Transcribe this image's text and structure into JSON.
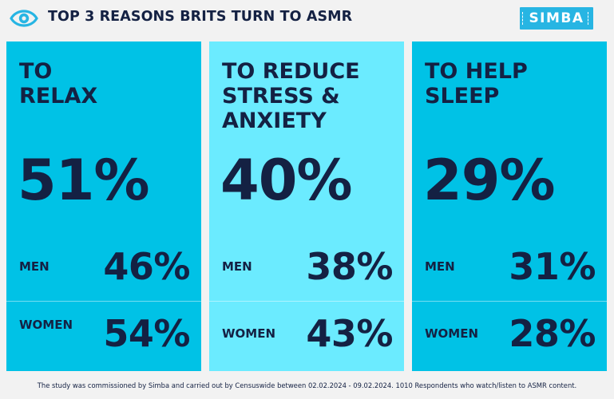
{
  "header": {
    "title": "TOP 3 REASONS BRITS TURN TO ASMR",
    "logo_text": "SIMBA",
    "icon": "eye-icon"
  },
  "colors": {
    "dark_text": "#142143",
    "card_cyan": "#00c2e6",
    "card_light": "#6bebff",
    "logo_blue": "#27b5e3"
  },
  "chart_data": {
    "type": "table",
    "title": "TOP 3 REASONS BRITS TURN TO ASMR",
    "columns": [
      "MEN",
      "WOMEN"
    ],
    "categories": [
      "TO RELAX",
      "TO REDUCE STRESS & ANXIETY",
      "TO HELP SLEEP"
    ],
    "cards": [
      {
        "title": "TO\nRELAX",
        "total": "51%",
        "men_label": "MEN",
        "men": "46%",
        "women_label": "WOMEN",
        "women": "54%"
      },
      {
        "title": "TO REDUCE\nSTRESS &\nANXIETY",
        "total": "40%",
        "men_label": "MEN",
        "men": "38%",
        "women_label": "WOMEN",
        "women": "43%"
      },
      {
        "title": "TO HELP\nSLEEP",
        "total": "29%",
        "men_label": "MEN",
        "men": "31%",
        "women_label": "WOMEN",
        "women": "28%"
      }
    ]
  },
  "footnote": "The study was commissioned by Simba and carried out by Censuswide between 02.02.2024 - 09.02.2024. 1010 Respondents who watch/listen to ASMR content."
}
